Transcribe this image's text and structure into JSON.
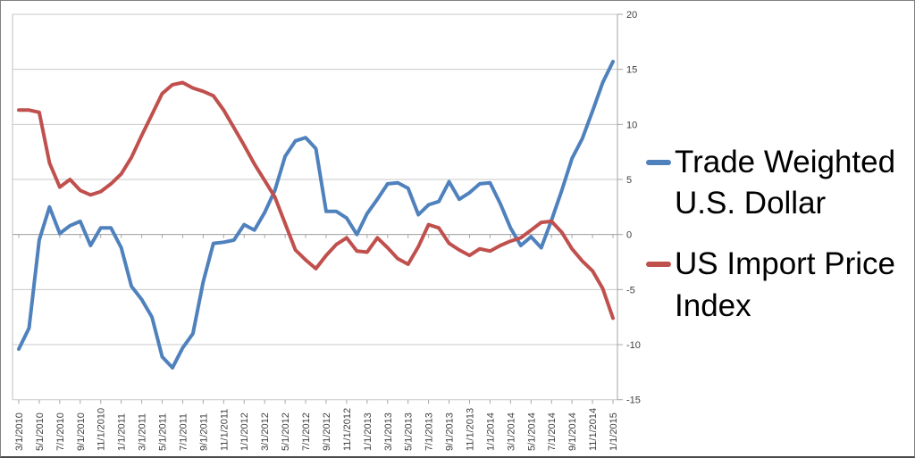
{
  "chart_data": {
    "type": "line",
    "title": "",
    "grid": true,
    "legend_position": "right",
    "categories": [
      "3/1/2010",
      "4/1/2010",
      "5/1/2010",
      "6/1/2010",
      "7/1/2010",
      "8/1/2010",
      "9/1/2010",
      "10/1/2010",
      "11/1/2010",
      "12/1/2010",
      "1/1/2011",
      "2/1/2011",
      "3/1/2011",
      "4/1/2011",
      "5/1/2011",
      "6/1/2011",
      "7/1/2011",
      "8/1/2011",
      "9/1/2011",
      "10/1/2011",
      "11/1/2011",
      "12/1/2011",
      "1/1/2012",
      "2/1/2012",
      "3/1/2012",
      "4/1/2012",
      "5/1/2012",
      "6/1/2012",
      "7/1/2012",
      "8/1/2012",
      "9/1/2012",
      "10/1/2012",
      "11/1/2012",
      "12/1/2012",
      "1/1/2013",
      "2/1/2013",
      "3/1/2013",
      "4/1/2013",
      "5/1/2013",
      "6/1/2013",
      "7/1/2013",
      "8/1/2013",
      "9/1/2013",
      "10/1/2013",
      "11/1/2013",
      "12/1/2013",
      "1/1/2014",
      "2/1/2014",
      "3/1/2014",
      "4/1/2014",
      "5/1/2014",
      "6/1/2014",
      "7/1/2014",
      "8/1/2014",
      "9/1/2014",
      "10/1/2014",
      "11/1/2014",
      "12/1/2014",
      "1/1/2015"
    ],
    "x_axis": {
      "tick_every": 2,
      "label_rotation": -90
    },
    "y_axis": {
      "min": -15,
      "max": 20,
      "step": 5,
      "position": "right",
      "labels": [
        "20",
        "15",
        "10",
        "5",
        "0",
        "-5",
        "-10",
        "-15"
      ]
    },
    "series": [
      {
        "name": "Trade Weighted U.S. Dollar",
        "color": "#4F81BD",
        "values": [
          -10.4,
          -8.5,
          -0.5,
          2.5,
          0.1,
          0.8,
          1.2,
          -1.0,
          0.6,
          0.6,
          -1.2,
          -4.7,
          -5.9,
          -7.5,
          -11.1,
          -12.1,
          -10.3,
          -9.0,
          -4.3,
          -0.8,
          -0.7,
          -0.5,
          0.9,
          0.4,
          2.0,
          4.0,
          7.1,
          8.5,
          8.8,
          7.8,
          2.1,
          2.1,
          1.5,
          0.0,
          1.9,
          3.2,
          4.6,
          4.7,
          4.2,
          1.8,
          2.7,
          3.0,
          4.8,
          3.2,
          3.8,
          4.6,
          4.7,
          2.8,
          0.6,
          -1.0,
          -0.2,
          -1.2,
          1.3,
          4.0,
          6.9,
          8.7,
          11.2,
          13.8,
          15.7
        ]
      },
      {
        "name": "US Import Price Index",
        "color": "#C0504D",
        "values": [
          11.3,
          11.3,
          11.1,
          6.5,
          4.3,
          5.0,
          4.0,
          3.6,
          3.9,
          4.6,
          5.5,
          7.0,
          9.0,
          10.9,
          12.8,
          13.6,
          13.8,
          13.3,
          13.0,
          12.6,
          11.3,
          9.7,
          8.1,
          6.4,
          4.9,
          3.4,
          1.0,
          -1.4,
          -2.3,
          -3.1,
          -1.9,
          -0.9,
          -0.3,
          -1.5,
          -1.6,
          -0.3,
          -1.2,
          -2.2,
          -2.7,
          -1.1,
          0.9,
          0.6,
          -0.8,
          -1.4,
          -1.9,
          -1.3,
          -1.5,
          -1.0,
          -0.6,
          -0.3,
          0.4,
          1.1,
          1.2,
          0.2,
          -1.3,
          -2.4,
          -3.3,
          -4.9,
          -7.6
        ]
      }
    ]
  },
  "legend": {
    "items": [
      {
        "label": "Trade Weighted U.S. Dollar",
        "color": "#4F81BD"
      },
      {
        "label": "US Import Price Index",
        "color": "#C0504D"
      }
    ]
  },
  "style": {
    "gridline_color": "#C9C9C9",
    "axis_color": "#A6A6A6",
    "tick_label_color": "#3f3f3f",
    "plot_border_color": "#BFBFBF"
  }
}
